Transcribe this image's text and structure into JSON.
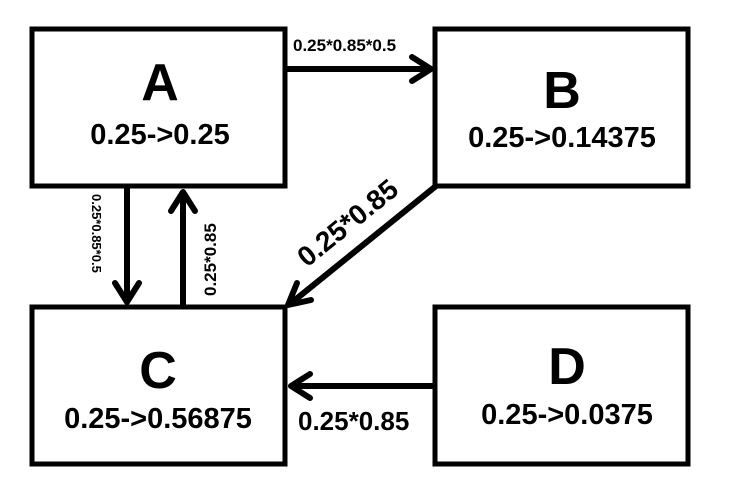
{
  "nodes": {
    "a": {
      "name": "A",
      "value": "0.25->0.25"
    },
    "b": {
      "name": "B",
      "value": "0.25->0.14375"
    },
    "c": {
      "name": "C",
      "value": "0.25->0.56875"
    },
    "d": {
      "name": "D",
      "value": "0.25->0.0375"
    }
  },
  "edges": {
    "a_to_b": "0.25*0.85*0.5",
    "a_to_c": "0.25*0.85*0.5",
    "c_to_a": "0.25*0.85",
    "b_to_c": "0.25*0.85",
    "d_to_c": "0.25*0.85"
  },
  "colors": {
    "stroke": "#000000",
    "background": "#ffffff"
  }
}
